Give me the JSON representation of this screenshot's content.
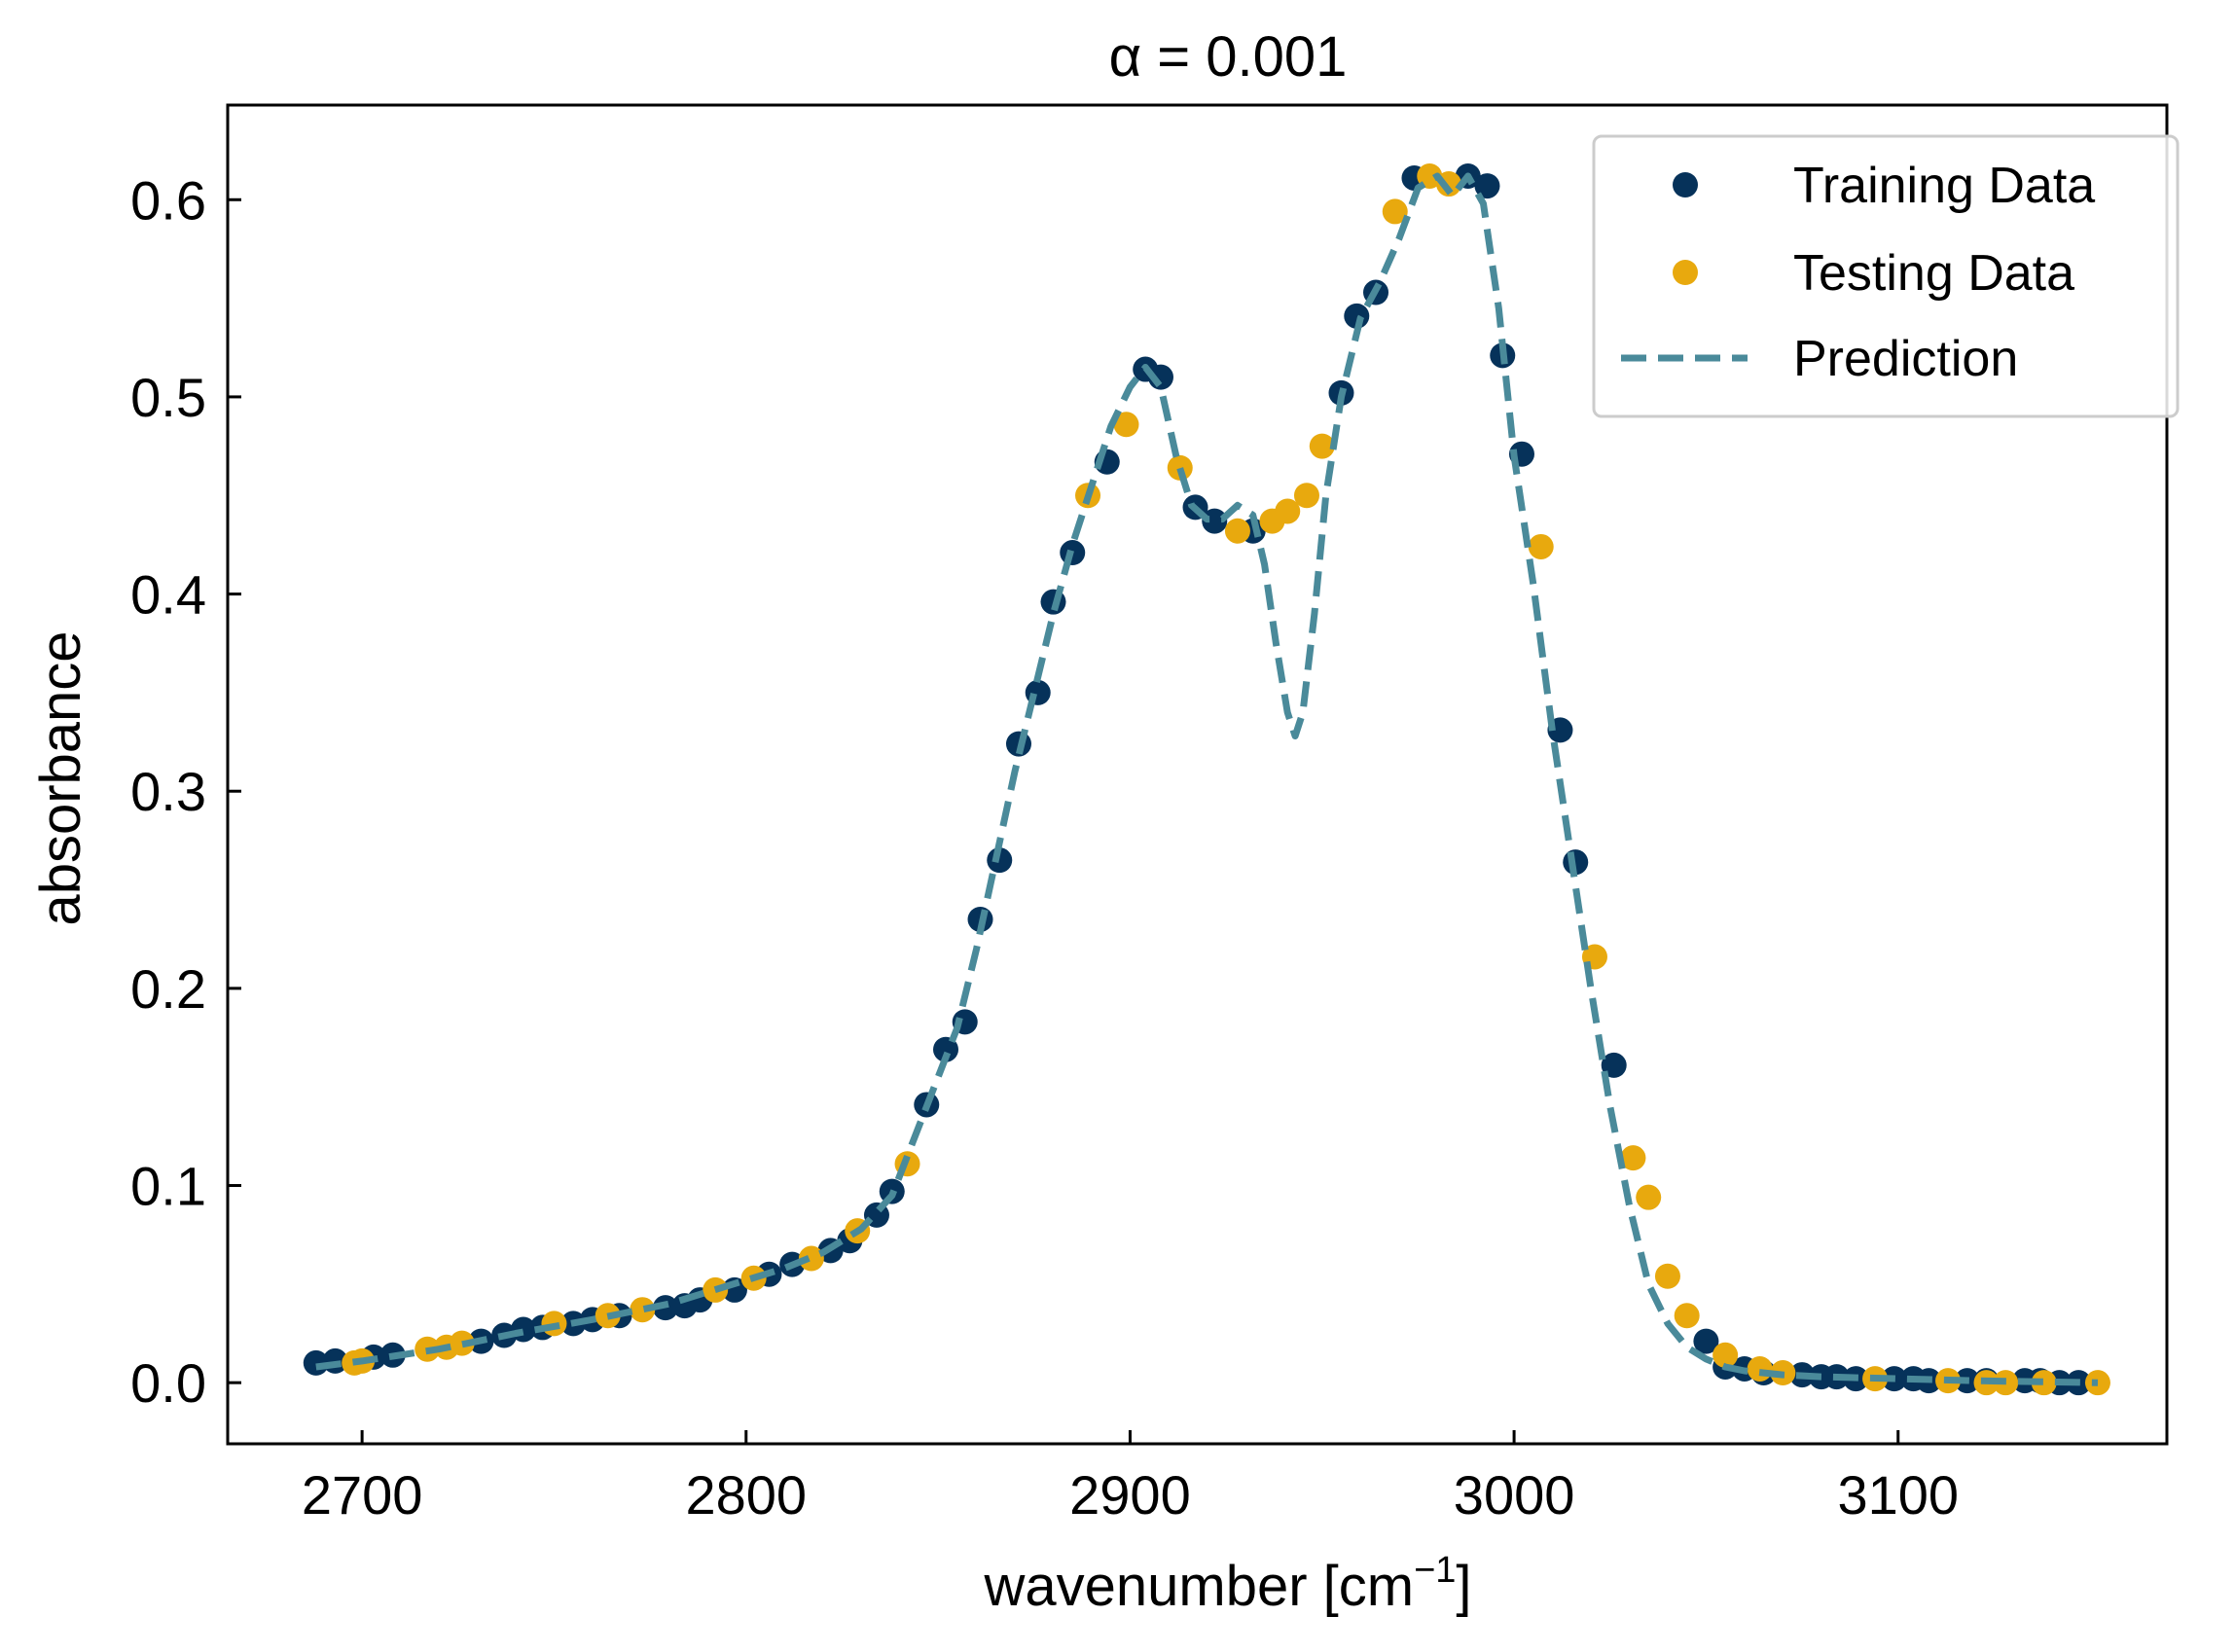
{
  "chart_data": {
    "type": "scatter",
    "title": "α = 0.001",
    "xlabel": "wavenumber [cm",
    "xlabel_sup": "−1",
    "xlabel_end": "]",
    "ylabel": "absorbance",
    "xlim": [
      2665,
      3170
    ],
    "ylim": [
      -0.031,
      0.648
    ],
    "xticks": [
      2700,
      2800,
      2900,
      3000,
      3100
    ],
    "xtick_labels": [
      "2700",
      "2800",
      "2900",
      "3000",
      "3100"
    ],
    "yticks": [
      0.0,
      0.1,
      0.2,
      0.3,
      0.4,
      0.5,
      0.6
    ],
    "ytick_labels": [
      "0.0",
      "0.1",
      "0.2",
      "0.3",
      "0.4",
      "0.5",
      "0.6"
    ],
    "grid": false,
    "legend_position": "top-right",
    "colors": {
      "training": "#06325a",
      "testing": "#e8a90e",
      "prediction": "#4a8a9a"
    },
    "series": [
      {
        "name": "Training Data",
        "kind": "points",
        "x": [
          2688,
          2693,
          2703,
          2708,
          2731,
          2737,
          2742,
          2747,
          2755,
          2760,
          2767,
          2779,
          2784,
          2788,
          2797,
          2806,
          2812,
          2822,
          2827,
          2834,
          2838,
          2847,
          2852,
          2857,
          2861,
          2866,
          2871,
          2876,
          2880,
          2885,
          2894,
          2904,
          2908,
          2917,
          2922,
          2932,
          2955,
          2959,
          2964,
          2974,
          2988,
          2993,
          2997,
          3002,
          3012,
          3016,
          3026,
          3050,
          3055,
          3060,
          3065,
          3075,
          3080,
          3084,
          3089,
          3099,
          3104,
          3108,
          3118,
          3123,
          3133,
          3137,
          3142,
          3147
        ],
        "y": [
          0.01,
          0.011,
          0.013,
          0.014,
          0.021,
          0.024,
          0.027,
          0.028,
          0.03,
          0.032,
          0.034,
          0.038,
          0.039,
          0.042,
          0.047,
          0.055,
          0.06,
          0.067,
          0.072,
          0.085,
          0.097,
          0.141,
          0.169,
          0.183,
          0.235,
          0.265,
          0.324,
          0.35,
          0.396,
          0.421,
          0.467,
          0.514,
          0.51,
          0.444,
          0.437,
          0.432,
          0.502,
          0.541,
          0.553,
          0.611,
          0.612,
          0.607,
          0.521,
          0.471,
          0.331,
          0.264,
          0.161,
          0.021,
          0.008,
          0.007,
          0.005,
          0.004,
          0.003,
          0.003,
          0.002,
          0.002,
          0.002,
          0.001,
          0.001,
          0.001,
          0.001,
          0.001,
          0.0,
          0.0
        ]
      },
      {
        "name": "Testing Data",
        "kind": "points",
        "x": [
          2698,
          2700,
          2717,
          2722,
          2726,
          2750,
          2764,
          2773,
          2792,
          2802,
          2817,
          2829,
          2842,
          2889,
          2899,
          2913,
          2928,
          2937,
          2941,
          2946,
          2950,
          2969,
          2978,
          2983,
          3007,
          3021,
          3031,
          3035,
          3040,
          3045,
          3055,
          3064,
          3070,
          3094,
          3113,
          3123,
          3128,
          3138,
          3152
        ],
        "y": [
          0.01,
          0.011,
          0.017,
          0.018,
          0.02,
          0.03,
          0.034,
          0.037,
          0.047,
          0.053,
          0.063,
          0.077,
          0.111,
          0.45,
          0.486,
          0.464,
          0.432,
          0.437,
          0.442,
          0.45,
          0.475,
          0.594,
          0.612,
          0.608,
          0.424,
          0.216,
          0.114,
          0.094,
          0.054,
          0.034,
          0.014,
          0.007,
          0.005,
          0.002,
          0.001,
          0.0,
          0.0,
          0.0,
          0.0
        ]
      },
      {
        "name": "Prediction",
        "kind": "dashed-line",
        "x": [
          2688,
          2700,
          2720,
          2740,
          2760,
          2780,
          2800,
          2810,
          2820,
          2830,
          2838,
          2845,
          2850,
          2855,
          2860,
          2865,
          2870,
          2875,
          2880,
          2885,
          2890,
          2895,
          2900,
          2904,
          2908,
          2912,
          2916,
          2920,
          2924,
          2928,
          2932,
          2935,
          2938,
          2941,
          2943,
          2945,
          2948,
          2951,
          2955,
          2960,
          2965,
          2970,
          2975,
          2980,
          2984,
          2988,
          2992,
          2996,
          3000,
          3005,
          3010,
          3015,
          3020,
          3025,
          3030,
          3035,
          3040,
          3045,
          3050,
          3055,
          3060,
          3070,
          3080,
          3100,
          3120,
          3152
        ],
        "y": [
          0.008,
          0.011,
          0.017,
          0.025,
          0.032,
          0.04,
          0.052,
          0.058,
          0.066,
          0.078,
          0.095,
          0.13,
          0.155,
          0.18,
          0.22,
          0.265,
          0.31,
          0.35,
          0.39,
          0.425,
          0.455,
          0.485,
          0.505,
          0.515,
          0.505,
          0.47,
          0.445,
          0.438,
          0.438,
          0.445,
          0.44,
          0.415,
          0.375,
          0.34,
          0.328,
          0.34,
          0.39,
          0.45,
          0.5,
          0.54,
          0.558,
          0.58,
          0.606,
          0.612,
          0.602,
          0.612,
          0.598,
          0.545,
          0.47,
          0.405,
          0.33,
          0.265,
          0.2,
          0.14,
          0.09,
          0.05,
          0.03,
          0.018,
          0.012,
          0.008,
          0.006,
          0.004,
          0.003,
          0.002,
          0.001,
          0.0
        ]
      }
    ]
  }
}
